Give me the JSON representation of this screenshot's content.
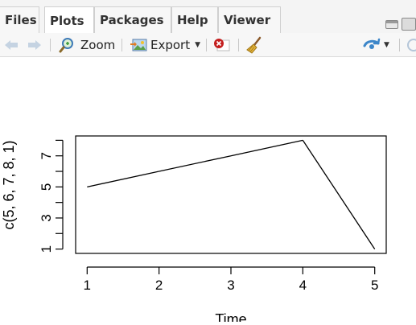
{
  "tabs": [
    {
      "label": "Files",
      "active": false
    },
    {
      "label": "Plots",
      "active": true
    },
    {
      "label": "Packages",
      "active": false
    },
    {
      "label": "Help",
      "active": false
    },
    {
      "label": "Viewer",
      "active": false
    }
  ],
  "toolbar": {
    "zoom_label": "Zoom",
    "export_label": "Export",
    "icons": [
      "back-arrow-icon",
      "forward-arrow-icon",
      "zoom-icon",
      "export-image-icon",
      "delete-plot-icon",
      "broom-icon",
      "sync-icon",
      "refresh-icon"
    ]
  },
  "chart_data": {
    "type": "line",
    "x": [
      1,
      2,
      3,
      4,
      5
    ],
    "values": [
      5,
      6,
      7,
      8,
      1
    ],
    "xlabel": "Time",
    "ylabel": "c(5, 6, 7, 8, 1)",
    "xticks": [
      "1",
      "2",
      "3",
      "4",
      "5"
    ],
    "yticks": [
      "1",
      "3",
      "5",
      "7"
    ],
    "xlim": [
      0.84,
      5.16
    ],
    "ylim": [
      0.72,
      8.28
    ],
    "grid": false,
    "line_color": "#000000"
  }
}
